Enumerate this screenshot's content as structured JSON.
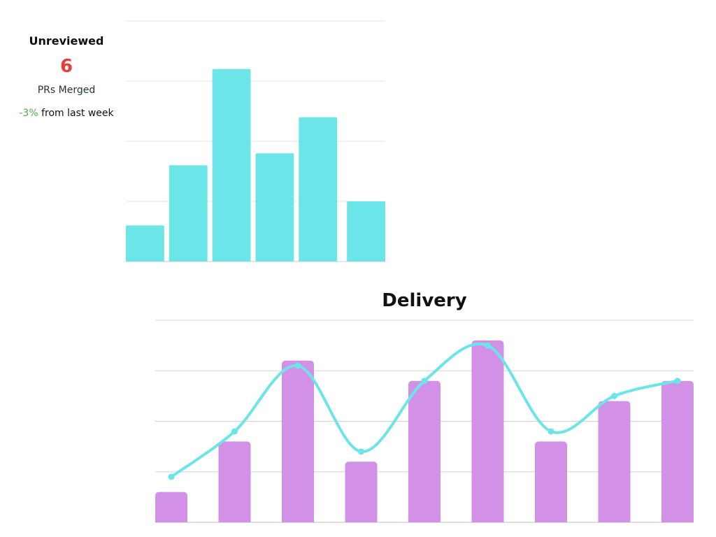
{
  "summary": {
    "title": "Unreviewed",
    "value": "6",
    "value_color": "#ee3a3a",
    "label": "PRs Merged",
    "change": "-3%",
    "change_color": "#4caf50",
    "change_suffix": "from last week"
  },
  "chart_data": [
    {
      "type": "bar",
      "title": "",
      "categories": [
        "",
        "",
        "",
        "",
        "",
        ""
      ],
      "series": [
        {
          "values": [
            3,
            8,
            16,
            9,
            12,
            5
          ],
          "color": "#6ce5e8"
        }
      ],
      "ylim": [
        0,
        20
      ],
      "grid": true
    },
    {
      "type": "bar",
      "title": "Delivery",
      "categories": [
        "",
        "",
        "",
        "",
        "",
        "",
        "",
        "",
        ""
      ],
      "series": [
        {
          "type": "bar",
          "values": [
            3,
            8,
            16,
            6,
            14,
            18,
            8,
            12,
            14
          ],
          "color": "#d291e6"
        },
        {
          "type": "line",
          "smooth": true,
          "values": [
            4.5,
            9,
            15.5,
            7,
            14,
            17.5,
            9,
            12.5,
            14
          ],
          "color": "#6ce5e8"
        }
      ],
      "ylim": [
        0,
        20
      ],
      "grid": true
    }
  ]
}
